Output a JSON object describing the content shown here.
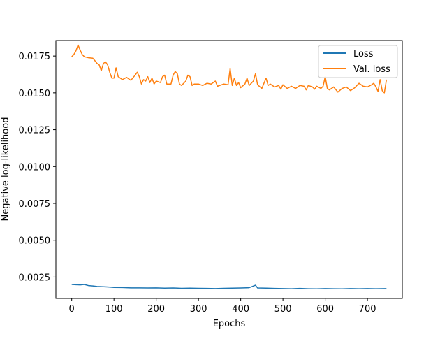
{
  "chart_data": {
    "type": "line",
    "title": "",
    "xlabel": "Epochs",
    "ylabel": "Negative log-likelihood",
    "xlim": [
      -37.5,
      782.5
    ],
    "ylim": [
      0.00105,
      0.01855
    ],
    "xticks": [
      0,
      100,
      200,
      300,
      400,
      500,
      600,
      700
    ],
    "xtick_labels": [
      "0",
      "100",
      "200",
      "300",
      "400",
      "500",
      "600",
      "700"
    ],
    "yticks": [
      0.0025,
      0.005,
      0.0075,
      0.01,
      0.0125,
      0.015,
      0.0175
    ],
    "ytick_labels": [
      "0.0025",
      "0.0050",
      "0.0075",
      "0.0100",
      "0.0125",
      "0.0150",
      "0.0175"
    ],
    "grid": false,
    "legend_position": "top-right",
    "series": [
      {
        "name": "Loss",
        "color": "#1f77b4",
        "points": [
          [
            0,
            0.002
          ],
          [
            10,
            0.00198
          ],
          [
            20,
            0.00197
          ],
          [
            30,
            0.002
          ],
          [
            40,
            0.00192
          ],
          [
            50,
            0.0019
          ],
          [
            60,
            0.00186
          ],
          [
            70,
            0.00185
          ],
          [
            80,
            0.00184
          ],
          [
            90,
            0.00182
          ],
          [
            100,
            0.0018
          ],
          [
            120,
            0.00179
          ],
          [
            140,
            0.00177
          ],
          [
            160,
            0.00177
          ],
          [
            180,
            0.00176
          ],
          [
            200,
            0.00177
          ],
          [
            220,
            0.00175
          ],
          [
            240,
            0.00176
          ],
          [
            260,
            0.00174
          ],
          [
            280,
            0.00175
          ],
          [
            300,
            0.00174
          ],
          [
            320,
            0.00173
          ],
          [
            340,
            0.00172
          ],
          [
            360,
            0.00174
          ],
          [
            380,
            0.00175
          ],
          [
            400,
            0.00176
          ],
          [
            420,
            0.00178
          ],
          [
            435,
            0.00195
          ],
          [
            440,
            0.00176
          ],
          [
            460,
            0.00175
          ],
          [
            480,
            0.00173
          ],
          [
            500,
            0.00172
          ],
          [
            520,
            0.00171
          ],
          [
            540,
            0.00173
          ],
          [
            560,
            0.00171
          ],
          [
            580,
            0.0017
          ],
          [
            600,
            0.00172
          ],
          [
            620,
            0.00171
          ],
          [
            640,
            0.0017
          ],
          [
            660,
            0.00172
          ],
          [
            680,
            0.00171
          ],
          [
            700,
            0.00172
          ],
          [
            720,
            0.00171
          ],
          [
            745,
            0.00172
          ]
        ]
      },
      {
        "name": "Val. loss",
        "color": "#ff7f0e",
        "points": [
          [
            0,
            0.01745
          ],
          [
            5,
            0.0176
          ],
          [
            10,
            0.01785
          ],
          [
            15,
            0.01825
          ],
          [
            20,
            0.0179
          ],
          [
            25,
            0.0176
          ],
          [
            30,
            0.01745
          ],
          [
            40,
            0.01738
          ],
          [
            50,
            0.01735
          ],
          [
            55,
            0.01718
          ],
          [
            60,
            0.017
          ],
          [
            65,
            0.0169
          ],
          [
            70,
            0.0165
          ],
          [
            75,
            0.017
          ],
          [
            80,
            0.0171
          ],
          [
            85,
            0.0169
          ],
          [
            90,
            0.0164
          ],
          [
            95,
            0.016
          ],
          [
            100,
            0.016
          ],
          [
            105,
            0.0167
          ],
          [
            110,
            0.0161
          ],
          [
            120,
            0.0159
          ],
          [
            130,
            0.01605
          ],
          [
            140,
            0.01585
          ],
          [
            150,
            0.0162
          ],
          [
            155,
            0.0164
          ],
          [
            160,
            0.0161
          ],
          [
            165,
            0.0156
          ],
          [
            170,
            0.0159
          ],
          [
            175,
            0.0158
          ],
          [
            180,
            0.0161
          ],
          [
            185,
            0.0157
          ],
          [
            190,
            0.016
          ],
          [
            195,
            0.0156
          ],
          [
            200,
            0.0158
          ],
          [
            210,
            0.0157
          ],
          [
            215,
            0.0161
          ],
          [
            220,
            0.0162
          ],
          [
            225,
            0.0156
          ],
          [
            230,
            0.0156
          ],
          [
            235,
            0.0156
          ],
          [
            240,
            0.0162
          ],
          [
            245,
            0.01645
          ],
          [
            250,
            0.0163
          ],
          [
            255,
            0.0156
          ],
          [
            260,
            0.0155
          ],
          [
            270,
            0.0158
          ],
          [
            275,
            0.0162
          ],
          [
            280,
            0.0161
          ],
          [
            285,
            0.0155
          ],
          [
            290,
            0.0156
          ],
          [
            300,
            0.0156
          ],
          [
            310,
            0.0155
          ],
          [
            320,
            0.01565
          ],
          [
            330,
            0.0156
          ],
          [
            340,
            0.0158
          ],
          [
            345,
            0.01545
          ],
          [
            360,
            0.0156
          ],
          [
            370,
            0.01555
          ],
          [
            375,
            0.01665
          ],
          [
            380,
            0.0155
          ],
          [
            385,
            0.016
          ],
          [
            390,
            0.0155
          ],
          [
            395,
            0.0157
          ],
          [
            400,
            0.01535
          ],
          [
            410,
            0.0156
          ],
          [
            415,
            0.016
          ],
          [
            420,
            0.0155
          ],
          [
            430,
            0.0158
          ],
          [
            435,
            0.0163
          ],
          [
            440,
            0.01555
          ],
          [
            450,
            0.0153
          ],
          [
            460,
            0.016
          ],
          [
            465,
            0.0155
          ],
          [
            470,
            0.0156
          ],
          [
            480,
            0.0154
          ],
          [
            490,
            0.0155
          ],
          [
            495,
            0.01525
          ],
          [
            500,
            0.01555
          ],
          [
            510,
            0.0153
          ],
          [
            520,
            0.01545
          ],
          [
            530,
            0.0153
          ],
          [
            540,
            0.0155
          ],
          [
            550,
            0.01545
          ],
          [
            555,
            0.0152
          ],
          [
            560,
            0.0155
          ],
          [
            570,
            0.0154
          ],
          [
            575,
            0.01525
          ],
          [
            580,
            0.01545
          ],
          [
            590,
            0.0153
          ],
          [
            595,
            0.01545
          ],
          [
            600,
            0.0161
          ],
          [
            605,
            0.0153
          ],
          [
            610,
            0.0152
          ],
          [
            620,
            0.0154
          ],
          [
            630,
            0.01505
          ],
          [
            640,
            0.0153
          ],
          [
            650,
            0.0154
          ],
          [
            660,
            0.01515
          ],
          [
            670,
            0.01535
          ],
          [
            680,
            0.01565
          ],
          [
            690,
            0.01545
          ],
          [
            700,
            0.0154
          ],
          [
            710,
            0.01555
          ],
          [
            715,
            0.01565
          ],
          [
            720,
            0.0154
          ],
          [
            725,
            0.0151
          ],
          [
            730,
            0.0159
          ],
          [
            735,
            0.01515
          ],
          [
            740,
            0.015
          ],
          [
            745,
            0.0159
          ]
        ]
      }
    ]
  }
}
